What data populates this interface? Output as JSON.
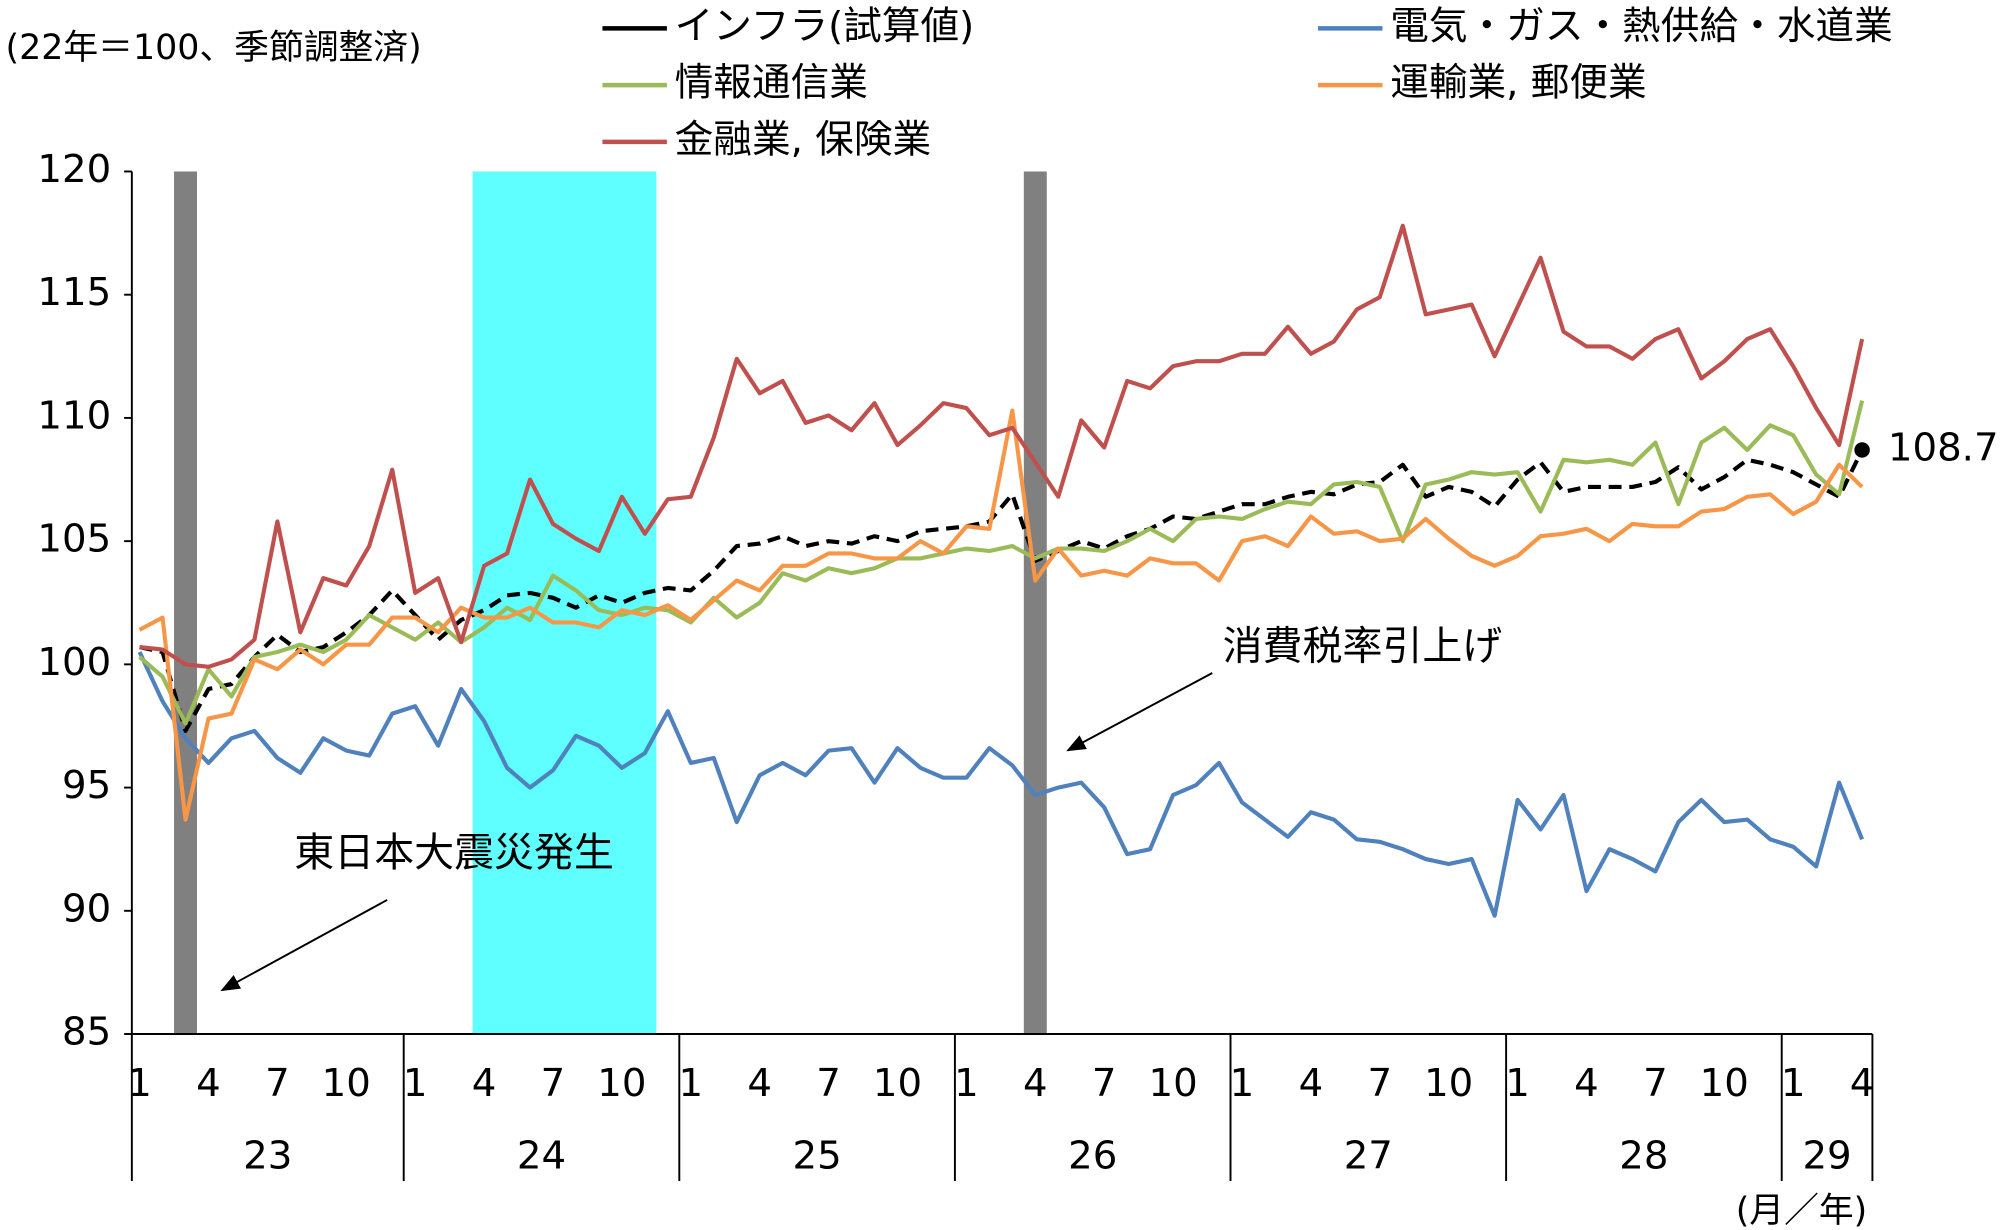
{
  "chart_data": {
    "type": "line",
    "unit_label": "(22年＝100、季節調整済)",
    "x_unit_label": "(月／年)",
    "categories": [
      "1",
      null,
      null,
      "4",
      null,
      null,
      "7",
      null,
      null,
      "10",
      null,
      null,
      "1",
      null,
      null,
      "4",
      null,
      null,
      "7",
      null,
      null,
      "10",
      null,
      null,
      "1",
      null,
      null,
      "4",
      null,
      null,
      "7",
      null,
      null,
      "10",
      null,
      null,
      "1",
      null,
      null,
      "4",
      null,
      null,
      "7",
      null,
      null,
      "10",
      null,
      null,
      "1",
      null,
      null,
      "4",
      null,
      null,
      "7",
      null,
      null,
      "10",
      null,
      null,
      "1",
      null,
      null,
      "4",
      null,
      null,
      "7",
      null,
      null,
      "10",
      null,
      null,
      "1",
      null,
      null,
      "4"
    ],
    "year_labels": [
      "23",
      "24",
      "25",
      "26",
      "27",
      "28",
      "29"
    ],
    "ylim": [
      85,
      120
    ],
    "yticks": [
      85,
      90,
      95,
      100,
      105,
      110,
      115,
      120
    ],
    "shaded_periods": [
      {
        "start": 2,
        "end": 2,
        "color": "#808080"
      },
      {
        "start": 15,
        "end": 22,
        "color": "#5fffff"
      },
      {
        "start": 39,
        "end": 39,
        "color": "#808080"
      }
    ],
    "annotations": [
      "東日本大震災発生",
      "消費税率引上げ"
    ],
    "series": [
      {
        "name": "インフラ(試算値)",
        "color": "#000000",
        "dashed": true,
        "values": [
          100.7,
          100.5,
          97.3,
          99.0,
          99.2,
          100.3,
          101.2,
          100.5,
          100.7,
          101.3,
          102.0,
          103.0,
          102.0,
          101.0,
          101.8,
          102.2,
          102.8,
          102.9,
          102.7,
          102.3,
          102.8,
          102.5,
          102.9,
          103.1,
          103.0,
          103.8,
          104.8,
          104.9,
          105.2,
          104.8,
          105.0,
          104.9,
          105.2,
          105.0,
          105.4,
          105.5,
          105.6,
          105.8,
          106.9,
          104.2,
          104.6,
          105.0,
          104.7,
          105.2,
          105.5,
          106.0,
          105.9,
          106.2,
          106.5,
          106.5,
          106.8,
          107.0,
          106.9,
          107.3,
          107.4,
          108.1,
          106.8,
          107.2,
          107.0,
          106.4,
          107.5,
          108.2,
          107.0,
          107.2,
          107.2,
          107.2,
          107.4,
          108.0,
          107.1,
          107.6,
          108.3,
          108.1,
          107.8,
          107.3,
          106.8,
          108.7
        ],
        "value_labels": [
          null,
          null,
          null,
          null,
          null,
          null,
          null,
          null,
          null,
          null,
          null,
          null,
          null,
          null,
          null,
          null,
          null,
          null,
          null,
          null,
          null,
          null,
          null,
          null,
          null,
          null,
          null,
          null,
          null,
          null,
          null,
          null,
          null,
          null,
          null,
          null,
          null,
          null,
          null,
          null,
          null,
          null,
          null,
          null,
          null,
          null,
          null,
          null,
          null,
          null,
          null,
          null,
          null,
          null,
          null,
          null,
          null,
          null,
          null,
          null,
          null,
          null,
          null,
          null,
          null,
          null,
          null,
          null,
          null,
          null,
          null,
          null,
          null,
          null,
          null,
          "108.7"
        ]
      },
      {
        "name": "電気・ガス・熱供給・水道業",
        "color": "#4f81bd",
        "values": [
          100.5,
          98.5,
          97.0,
          96.0,
          97.0,
          97.3,
          96.2,
          95.6,
          97.0,
          96.5,
          96.3,
          98.0,
          98.3,
          96.7,
          99.0,
          97.7,
          95.8,
          95.0,
          95.7,
          97.1,
          96.7,
          95.8,
          96.4,
          98.1,
          96.0,
          96.2,
          93.6,
          95.5,
          96.0,
          95.5,
          96.5,
          96.6,
          95.2,
          96.6,
          95.8,
          95.4,
          95.4,
          96.6,
          95.9,
          94.7,
          95.0,
          95.2,
          94.2,
          92.3,
          92.5,
          94.7,
          95.1,
          96.0,
          94.4,
          93.7,
          93.0,
          94.0,
          93.7,
          92.9,
          92.8,
          92.5,
          92.1,
          91.9,
          92.1,
          89.8,
          94.5,
          93.3,
          94.7,
          90.8,
          92.5,
          92.1,
          91.6,
          93.6,
          94.5,
          93.6,
          93.7,
          92.9,
          92.6,
          91.8,
          95.2,
          92.9
        ]
      },
      {
        "name": "情報通信業",
        "color": "#9bbb59",
        "values": [
          100.3,
          99.5,
          97.6,
          99.8,
          98.7,
          100.3,
          100.5,
          100.8,
          100.5,
          101.0,
          102.0,
          101.5,
          101.0,
          101.7,
          100.9,
          101.5,
          102.3,
          101.8,
          103.6,
          103.0,
          102.2,
          102.0,
          102.3,
          102.2,
          101.7,
          102.7,
          101.9,
          102.5,
          103.7,
          103.4,
          103.9,
          103.7,
          103.9,
          104.3,
          104.3,
          104.5,
          104.7,
          104.6,
          104.8,
          104.3,
          104.7,
          104.7,
          104.6,
          105.0,
          105.5,
          105.0,
          105.9,
          106.0,
          105.9,
          106.3,
          106.6,
          106.5,
          107.3,
          107.4,
          107.2,
          105.0,
          107.3,
          107.5,
          107.8,
          107.7,
          107.8,
          106.2,
          108.3,
          108.2,
          108.3,
          108.1,
          109.0,
          106.5,
          109.0,
          109.6,
          108.7,
          109.7,
          109.3,
          107.7,
          106.9,
          110.7
        ]
      },
      {
        "name": "運輸業, 郵便業",
        "color": "#f79646",
        "values": [
          101.4,
          101.9,
          93.7,
          97.8,
          98.0,
          100.2,
          99.8,
          100.6,
          100.0,
          100.8,
          100.8,
          101.9,
          101.9,
          101.3,
          102.3,
          101.9,
          101.9,
          102.3,
          101.7,
          101.7,
          101.5,
          102.2,
          102.0,
          102.4,
          101.8,
          102.6,
          103.4,
          103.0,
          104.0,
          104.0,
          104.5,
          104.5,
          104.3,
          104.3,
          105.0,
          104.5,
          105.6,
          105.5,
          110.3,
          103.4,
          104.7,
          103.6,
          103.8,
          103.6,
          104.3,
          104.1,
          104.1,
          103.4,
          105.0,
          105.2,
          104.8,
          106.0,
          105.3,
          105.4,
          105.0,
          105.1,
          105.9,
          105.1,
          104.4,
          104.0,
          104.4,
          105.2,
          105.3,
          105.5,
          105.0,
          105.7,
          105.6,
          105.6,
          106.2,
          106.3,
          106.8,
          106.9,
          106.1,
          106.6,
          108.1,
          107.2
        ]
      },
      {
        "name": "金融業, 保険業",
        "color": "#c0504d",
        "values": [
          100.7,
          100.6,
          100.0,
          99.9,
          100.2,
          101.0,
          105.8,
          101.3,
          103.5,
          103.2,
          104.8,
          107.9,
          102.9,
          103.5,
          100.9,
          104.0,
          104.5,
          107.5,
          105.7,
          105.1,
          104.6,
          106.8,
          105.3,
          106.7,
          106.8,
          109.2,
          112.4,
          111.0,
          111.5,
          109.8,
          110.1,
          109.5,
          110.6,
          108.9,
          109.7,
          110.6,
          110.4,
          109.3,
          109.6,
          108.2,
          106.8,
          109.9,
          108.8,
          111.5,
          111.2,
          112.1,
          112.3,
          112.3,
          112.6,
          112.6,
          113.7,
          112.6,
          113.1,
          114.4,
          114.9,
          117.8,
          114.2,
          114.4,
          114.6,
          112.5,
          114.5,
          116.5,
          113.5,
          112.9,
          112.9,
          112.4,
          113.2,
          113.6,
          111.6,
          112.3,
          113.2,
          113.6,
          112.1,
          110.4,
          108.9,
          113.2
        ]
      }
    ]
  }
}
